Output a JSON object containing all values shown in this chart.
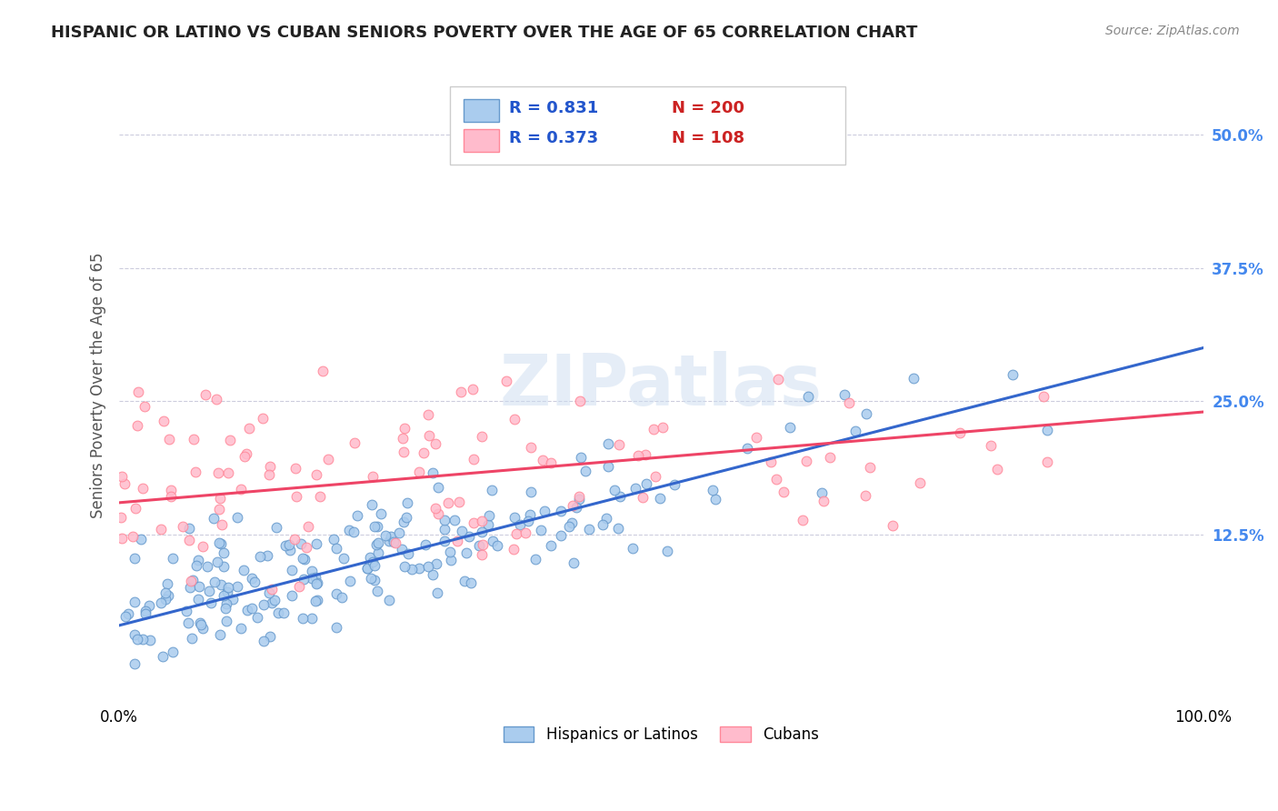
{
  "title": "HISPANIC OR LATINO VS CUBAN SENIORS POVERTY OVER THE AGE OF 65 CORRELATION CHART",
  "source": "Source: ZipAtlas.com",
  "ylabel": "Seniors Poverty Over the Age of 65",
  "xlim": [
    0,
    1
  ],
  "ylim": [
    -0.03,
    0.56
  ],
  "yticks": [
    0.0,
    0.125,
    0.25,
    0.375,
    0.5
  ],
  "ytick_labels": [
    "",
    "12.5%",
    "25.0%",
    "37.5%",
    "50.0%"
  ],
  "xticks": [
    0.0,
    1.0
  ],
  "xtick_labels": [
    "0.0%",
    "100.0%"
  ],
  "blue_R": 0.831,
  "blue_N": 200,
  "pink_R": 0.373,
  "pink_N": 108,
  "blue_color": "#aaccee",
  "blue_edge": "#6699cc",
  "pink_color": "#ffbbcc",
  "pink_edge": "#ff8899",
  "blue_line_color": "#3366cc",
  "pink_line_color": "#ee4466",
  "legend_R_color": "#2255cc",
  "legend_N_color": "#cc2222",
  "title_color": "#222222",
  "axis_label_color": "#555555",
  "tick_color_y": "#4488ee",
  "grid_color": "#ccccdd",
  "blue_slope": 0.26,
  "blue_intercept": 0.04,
  "pink_slope": 0.085,
  "pink_intercept": 0.155,
  "seed": 42
}
